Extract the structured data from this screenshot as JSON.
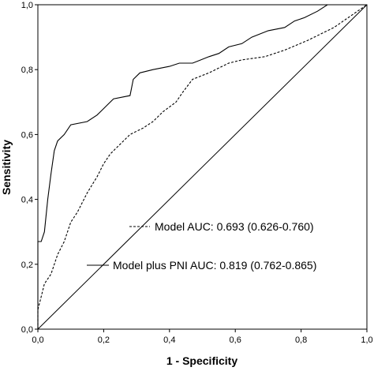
{
  "chart_data": {
    "type": "line",
    "title": "",
    "xlabel": "1 - Specificity",
    "ylabel": "Sensitivity",
    "xlim": [
      0,
      1
    ],
    "ylim": [
      0,
      1
    ],
    "x_ticks": [
      "0,0",
      "0,2",
      "0,4",
      "0,6",
      "0,8",
      "1,0"
    ],
    "y_ticks": [
      "0,0",
      "0,2",
      "0,4",
      "0,6",
      "0,8",
      "1,0"
    ],
    "grid": false,
    "legend_position": "bottom-right",
    "series": [
      {
        "name": "Model AUC: 0.693 (0.626-0.760)",
        "style": "dashed",
        "color": "#000000",
        "points": [
          [
            0,
            0
          ],
          [
            0,
            0.06
          ],
          [
            0.01,
            0.1
          ],
          [
            0.02,
            0.14
          ],
          [
            0.04,
            0.17
          ],
          [
            0.06,
            0.23
          ],
          [
            0.08,
            0.27
          ],
          [
            0.1,
            0.33
          ],
          [
            0.12,
            0.36
          ],
          [
            0.15,
            0.42
          ],
          [
            0.18,
            0.47
          ],
          [
            0.2,
            0.51
          ],
          [
            0.22,
            0.54
          ],
          [
            0.25,
            0.57
          ],
          [
            0.28,
            0.6
          ],
          [
            0.32,
            0.62
          ],
          [
            0.35,
            0.64
          ],
          [
            0.38,
            0.67
          ],
          [
            0.42,
            0.7
          ],
          [
            0.44,
            0.73
          ],
          [
            0.47,
            0.77
          ],
          [
            0.52,
            0.79
          ],
          [
            0.58,
            0.82
          ],
          [
            0.62,
            0.83
          ],
          [
            0.69,
            0.84
          ],
          [
            0.75,
            0.86
          ],
          [
            0.82,
            0.89
          ],
          [
            0.9,
            0.93
          ],
          [
            1.0,
            1.0
          ]
        ]
      },
      {
        "name": "Model plus PNI AUC: 0.819 (0.762-0.865)",
        "style": "solid",
        "color": "#000000",
        "points": [
          [
            0,
            0
          ],
          [
            0,
            0.27
          ],
          [
            0.01,
            0.27
          ],
          [
            0.02,
            0.3
          ],
          [
            0.03,
            0.4
          ],
          [
            0.04,
            0.48
          ],
          [
            0.05,
            0.55
          ],
          [
            0.06,
            0.58
          ],
          [
            0.08,
            0.6
          ],
          [
            0.1,
            0.63
          ],
          [
            0.15,
            0.64
          ],
          [
            0.18,
            0.66
          ],
          [
            0.21,
            0.69
          ],
          [
            0.23,
            0.71
          ],
          [
            0.28,
            0.72
          ],
          [
            0.29,
            0.77
          ],
          [
            0.31,
            0.79
          ],
          [
            0.35,
            0.8
          ],
          [
            0.4,
            0.81
          ],
          [
            0.43,
            0.82
          ],
          [
            0.47,
            0.82
          ],
          [
            0.52,
            0.84
          ],
          [
            0.55,
            0.85
          ],
          [
            0.58,
            0.87
          ],
          [
            0.62,
            0.88
          ],
          [
            0.65,
            0.9
          ],
          [
            0.7,
            0.92
          ],
          [
            0.75,
            0.93
          ],
          [
            0.78,
            0.95
          ],
          [
            0.81,
            0.96
          ],
          [
            0.85,
            0.98
          ],
          [
            0.88,
            1.0
          ],
          [
            1.0,
            1.0
          ]
        ]
      }
    ]
  }
}
